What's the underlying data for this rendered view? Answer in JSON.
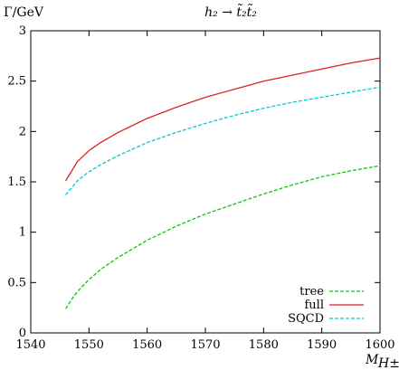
{
  "chart_data": {
    "type": "line",
    "title": "h₂ → t̃₂t̃₂",
    "ylabel": "Γ/GeV",
    "xlabel": "M",
    "xlabel_sub": "H±",
    "xlim": [
      1540,
      1600
    ],
    "ylim": [
      0,
      3
    ],
    "xticks": [
      1540,
      1550,
      1560,
      1570,
      1580,
      1590,
      1600
    ],
    "yticks": [
      0,
      0.5,
      1,
      1.5,
      2,
      2.5,
      3
    ],
    "xtick_labels": [
      "1540",
      "1550",
      "1560",
      "1570",
      "1580",
      "1590",
      "1600"
    ],
    "ytick_labels": [
      "0",
      "0.5",
      "1",
      "1.5",
      "2",
      "2.5",
      "3"
    ],
    "grid": false,
    "legend_position": "bottom-right",
    "series": [
      {
        "name": "tree",
        "color": "#00cc00",
        "dash": "dashed",
        "x": [
          1546,
          1547,
          1548,
          1550,
          1552,
          1555,
          1560,
          1565,
          1570,
          1575,
          1580,
          1585,
          1590,
          1595,
          1600
        ],
        "y": [
          0.24,
          0.33,
          0.41,
          0.53,
          0.63,
          0.75,
          0.92,
          1.06,
          1.18,
          1.28,
          1.38,
          1.47,
          1.55,
          1.61,
          1.66
        ]
      },
      {
        "name": "full",
        "color": "#dd2222",
        "dash": "solid",
        "x": [
          1546,
          1548,
          1550,
          1552,
          1555,
          1560,
          1565,
          1570,
          1575,
          1580,
          1585,
          1590,
          1595,
          1600
        ],
        "y": [
          1.51,
          1.7,
          1.81,
          1.89,
          1.99,
          2.13,
          2.24,
          2.34,
          2.42,
          2.5,
          2.56,
          2.62,
          2.68,
          2.73
        ]
      },
      {
        "name": "SQCD",
        "color": "#00cccc",
        "dash": "dashed",
        "x": [
          1546,
          1548,
          1550,
          1552,
          1555,
          1560,
          1565,
          1570,
          1575,
          1580,
          1585,
          1590,
          1595,
          1600
        ],
        "y": [
          1.37,
          1.51,
          1.6,
          1.67,
          1.76,
          1.89,
          1.99,
          2.08,
          2.16,
          2.23,
          2.29,
          2.34,
          2.39,
          2.44
        ]
      }
    ]
  }
}
